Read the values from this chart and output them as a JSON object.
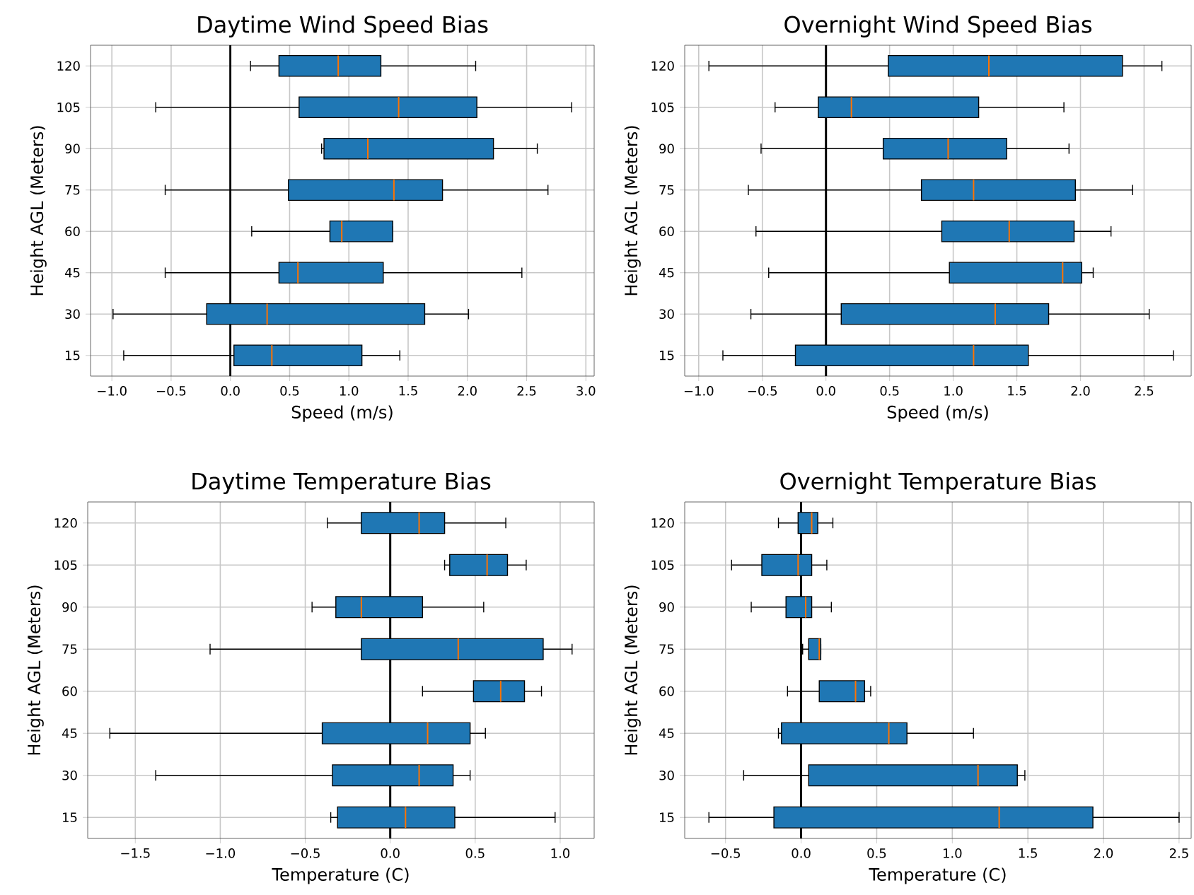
{
  "chart_data": [
    {
      "type": "box",
      "orientation": "horizontal",
      "title": "Daytime Wind Speed Bias",
      "xlabel": "Speed (m/s)",
      "ylabel": "Height AGL (Meters)",
      "grid": true,
      "color": "#1f77b4",
      "categories": [
        "120",
        "105",
        "90",
        "75",
        "60",
        "45",
        "30",
        "15"
      ],
      "xlim": [
        -1.18,
        3.07
      ],
      "xticks": [
        {
          "value": -1.0,
          "label": "−1.0"
        },
        {
          "value": -0.5,
          "label": "−0.5"
        },
        {
          "value": 0,
          "label": "0.0"
        },
        {
          "value": 0.5,
          "label": "0.5"
        },
        {
          "value": 1,
          "label": "1.0"
        },
        {
          "value": 1.5,
          "label": "1.5"
        },
        {
          "value": 2,
          "label": "2.0"
        },
        {
          "value": 2.5,
          "label": "2.5"
        },
        {
          "value": 3,
          "label": "3.0"
        }
      ],
      "ref_lines": [
        {
          "axis": "x",
          "value": 0,
          "color": "#000000"
        }
      ],
      "boxes": [
        {
          "low": 0.17,
          "q1": 0.41,
          "median": 0.91,
          "q3": 1.27,
          "high": 2.07
        },
        {
          "low": -0.63,
          "q1": 0.58,
          "median": 1.42,
          "q3": 2.08,
          "high": 2.88
        },
        {
          "low": 0.77,
          "q1": 0.79,
          "median": 1.16,
          "q3": 2.22,
          "high": 2.59
        },
        {
          "low": -0.55,
          "q1": 0.49,
          "median": 1.38,
          "q3": 1.79,
          "high": 2.68
        },
        {
          "low": 0.18,
          "q1": 0.84,
          "median": 0.94,
          "q3": 1.37,
          "high": 1.37
        },
        {
          "low": -0.55,
          "q1": 0.41,
          "median": 0.57,
          "q3": 1.29,
          "high": 2.46
        },
        {
          "low": -0.99,
          "q1": -0.2,
          "median": 0.31,
          "q3": 1.64,
          "high": 2.01
        },
        {
          "low": -0.9,
          "q1": 0.03,
          "median": 0.35,
          "q3": 1.11,
          "high": 1.43
        }
      ]
    },
    {
      "type": "box",
      "orientation": "horizontal",
      "title": "Overnight Wind Speed Bias",
      "xlabel": "Speed (m/s)",
      "ylabel": "Height AGL (Meters)",
      "grid": true,
      "color": "#1f77b4",
      "categories": [
        "120",
        "105",
        "90",
        "75",
        "60",
        "45",
        "30",
        "15"
      ],
      "xlim": [
        -1.11,
        2.87
      ],
      "xticks": [
        {
          "value": -1.0,
          "label": "−1.0"
        },
        {
          "value": -0.5,
          "label": "−0.5"
        },
        {
          "value": 0,
          "label": "0.0"
        },
        {
          "value": 0.5,
          "label": "0.5"
        },
        {
          "value": 1,
          "label": "1.0"
        },
        {
          "value": 1.5,
          "label": "1.5"
        },
        {
          "value": 2,
          "label": "2.0"
        },
        {
          "value": 2.5,
          "label": "2.5"
        }
      ],
      "ref_lines": [
        {
          "axis": "x",
          "value": 0,
          "color": "#000000"
        }
      ],
      "boxes": [
        {
          "low": -0.92,
          "q1": 0.49,
          "median": 1.28,
          "q3": 2.33,
          "high": 2.64
        },
        {
          "low": -0.4,
          "q1": -0.06,
          "median": 0.2,
          "q3": 1.2,
          "high": 1.87
        },
        {
          "low": -0.51,
          "q1": 0.45,
          "median": 0.96,
          "q3": 1.42,
          "high": 1.91
        },
        {
          "low": -0.61,
          "q1": 0.75,
          "median": 1.16,
          "q3": 1.96,
          "high": 2.41
        },
        {
          "low": -0.55,
          "q1": 0.91,
          "median": 1.44,
          "q3": 1.95,
          "high": 2.24
        },
        {
          "low": -0.45,
          "q1": 0.97,
          "median": 1.86,
          "q3": 2.01,
          "high": 2.1
        },
        {
          "low": -0.59,
          "q1": 0.12,
          "median": 1.33,
          "q3": 1.75,
          "high": 2.54
        },
        {
          "low": -0.81,
          "q1": -0.24,
          "median": 1.16,
          "q3": 1.59,
          "high": 2.73
        }
      ]
    },
    {
      "type": "box",
      "orientation": "horizontal",
      "title": "Daytime Temperature Bias",
      "xlabel": "Temperature (C)",
      "ylabel": "Height AGL (Meters)",
      "grid": true,
      "color": "#1f77b4",
      "categories": [
        "120",
        "105",
        "90",
        "75",
        "60",
        "45",
        "30",
        "15"
      ],
      "xlim": [
        -1.78,
        1.2
      ],
      "xticks": [
        {
          "value": -1.5,
          "label": "−1.5"
        },
        {
          "value": -1.0,
          "label": "−1.0"
        },
        {
          "value": -0.5,
          "label": "−0.5"
        },
        {
          "value": 0,
          "label": "0.0"
        },
        {
          "value": 0.5,
          "label": "0.5"
        },
        {
          "value": 1,
          "label": "1.0"
        }
      ],
      "ref_lines": [
        {
          "axis": "x",
          "value": 0,
          "color": "#000000"
        }
      ],
      "boxes": [
        {
          "low": -0.37,
          "q1": -0.17,
          "median": 0.17,
          "q3": 0.32,
          "high": 0.68
        },
        {
          "low": 0.32,
          "q1": 0.35,
          "median": 0.57,
          "q3": 0.69,
          "high": 0.8
        },
        {
          "low": -0.46,
          "q1": -0.32,
          "median": -0.17,
          "q3": 0.19,
          "high": 0.55
        },
        {
          "low": -1.06,
          "q1": -0.17,
          "median": 0.4,
          "q3": 0.9,
          "high": 1.07
        },
        {
          "low": 0.19,
          "q1": 0.49,
          "median": 0.65,
          "q3": 0.79,
          "high": 0.89
        },
        {
          "low": -1.65,
          "q1": -0.4,
          "median": 0.22,
          "q3": 0.47,
          "high": 0.56
        },
        {
          "low": -1.38,
          "q1": -0.34,
          "median": 0.17,
          "q3": 0.37,
          "high": 0.47
        },
        {
          "low": -0.35,
          "q1": -0.31,
          "median": 0.09,
          "q3": 0.38,
          "high": 0.97
        }
      ]
    },
    {
      "type": "box",
      "orientation": "horizontal",
      "title": "Overnight Temperature Bias",
      "xlabel": "Temperature (C)",
      "ylabel": "Height AGL (Meters)",
      "grid": true,
      "color": "#1f77b4",
      "categories": [
        "120",
        "105",
        "90",
        "75",
        "60",
        "45",
        "30",
        "15"
      ],
      "xlim": [
        -0.77,
        2.58
      ],
      "xticks": [
        {
          "value": -0.5,
          "label": "−0.5"
        },
        {
          "value": 0,
          "label": "0.0"
        },
        {
          "value": 0.5,
          "label": "0.5"
        },
        {
          "value": 1,
          "label": "1.0"
        },
        {
          "value": 1.5,
          "label": "1.5"
        },
        {
          "value": 2,
          "label": "2.0"
        },
        {
          "value": 2.5,
          "label": "2.5"
        }
      ],
      "ref_lines": [
        {
          "axis": "x",
          "value": 0,
          "color": "#000000"
        }
      ],
      "boxes": [
        {
          "low": -0.15,
          "q1": -0.02,
          "median": 0.07,
          "q3": 0.11,
          "high": 0.21
        },
        {
          "low": -0.46,
          "q1": -0.26,
          "median": -0.02,
          "q3": 0.07,
          "high": 0.17
        },
        {
          "low": -0.33,
          "q1": -0.1,
          "median": 0.03,
          "q3": 0.07,
          "high": 0.2
        },
        {
          "low": 0.01,
          "q1": 0.05,
          "median": 0.12,
          "q3": 0.13,
          "high": 0.13
        },
        {
          "low": -0.09,
          "q1": 0.12,
          "median": 0.36,
          "q3": 0.42,
          "high": 0.46
        },
        {
          "low": -0.15,
          "q1": -0.13,
          "median": 0.58,
          "q3": 0.7,
          "high": 1.14
        },
        {
          "low": -0.38,
          "q1": 0.05,
          "median": 1.17,
          "q3": 1.43,
          "high": 1.48
        },
        {
          "low": -0.61,
          "q1": -0.18,
          "median": 1.31,
          "q3": 1.93,
          "high": 2.5
        }
      ]
    }
  ]
}
